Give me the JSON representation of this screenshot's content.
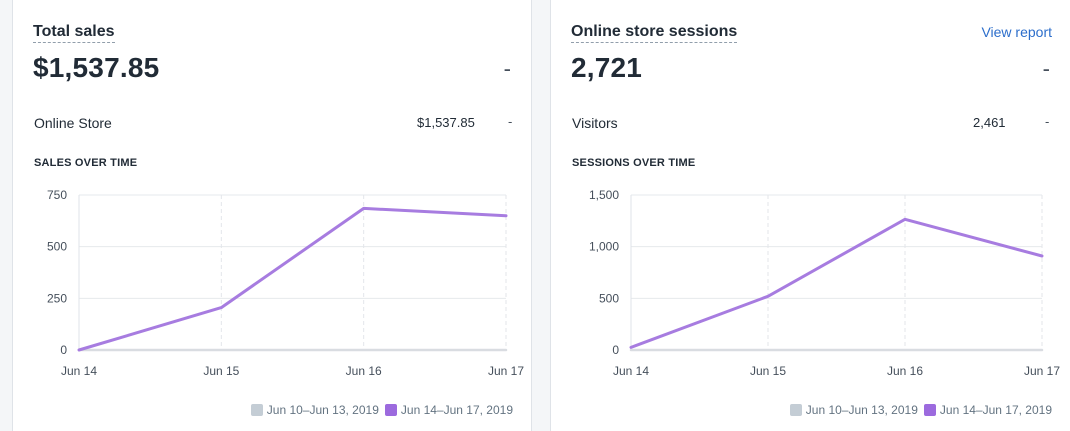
{
  "cards": [
    {
      "title": "Total sales",
      "value": "$1,537.85",
      "change": "-",
      "breakdown": {
        "label": "Online Store",
        "value": "$1,537.85",
        "change": "-"
      },
      "section_label": "SALES OVER TIME",
      "legend": {
        "previous": "Jun 10–Jun 13, 2019",
        "current": "Jun 14–Jun 17, 2019"
      }
    },
    {
      "title": "Online store sessions",
      "view_report": "View report",
      "value": "2,721",
      "change": "-",
      "breakdown": {
        "label": "Visitors",
        "value": "2,461",
        "change": "-"
      },
      "section_label": "SESSIONS OVER TIME",
      "legend": {
        "previous": "Jun 10–Jun 13, 2019",
        "current": "Jun 14–Jun 17, 2019"
      }
    }
  ],
  "colors": {
    "current": "#a77ce0",
    "previous": "#d9dce1",
    "swatch_current": "#9c6ade",
    "swatch_previous": "#c4cdd5"
  },
  "chart_data": [
    {
      "type": "line",
      "title": "SALES OVER TIME",
      "categories": [
        "Jun 14",
        "Jun 15",
        "Jun 16",
        "Jun 17"
      ],
      "y_ticks": [
        "0",
        "250",
        "500",
        "750"
      ],
      "ylim": [
        0,
        750
      ],
      "grid": true,
      "legend_position": "bottom-right",
      "series": [
        {
          "name": "Jun 14–Jun 17, 2019",
          "values": [
            0,
            205,
            685,
            650
          ]
        },
        {
          "name": "Jun 10–Jun 13, 2019",
          "values": [
            0,
            0,
            0,
            0
          ]
        }
      ]
    },
    {
      "type": "line",
      "title": "SESSIONS OVER TIME",
      "categories": [
        "Jun 14",
        "Jun 15",
        "Jun 16",
        "Jun 17"
      ],
      "y_ticks": [
        "0",
        "500",
        "1,000",
        "1,500"
      ],
      "ylim": [
        0,
        1500
      ],
      "grid": true,
      "legend_position": "bottom-right",
      "series": [
        {
          "name": "Jun 14–Jun 17, 2019",
          "values": [
            25,
            520,
            1265,
            910
          ]
        },
        {
          "name": "Jun 10–Jun 13, 2019",
          "values": [
            0,
            0,
            0,
            0
          ]
        }
      ]
    }
  ]
}
